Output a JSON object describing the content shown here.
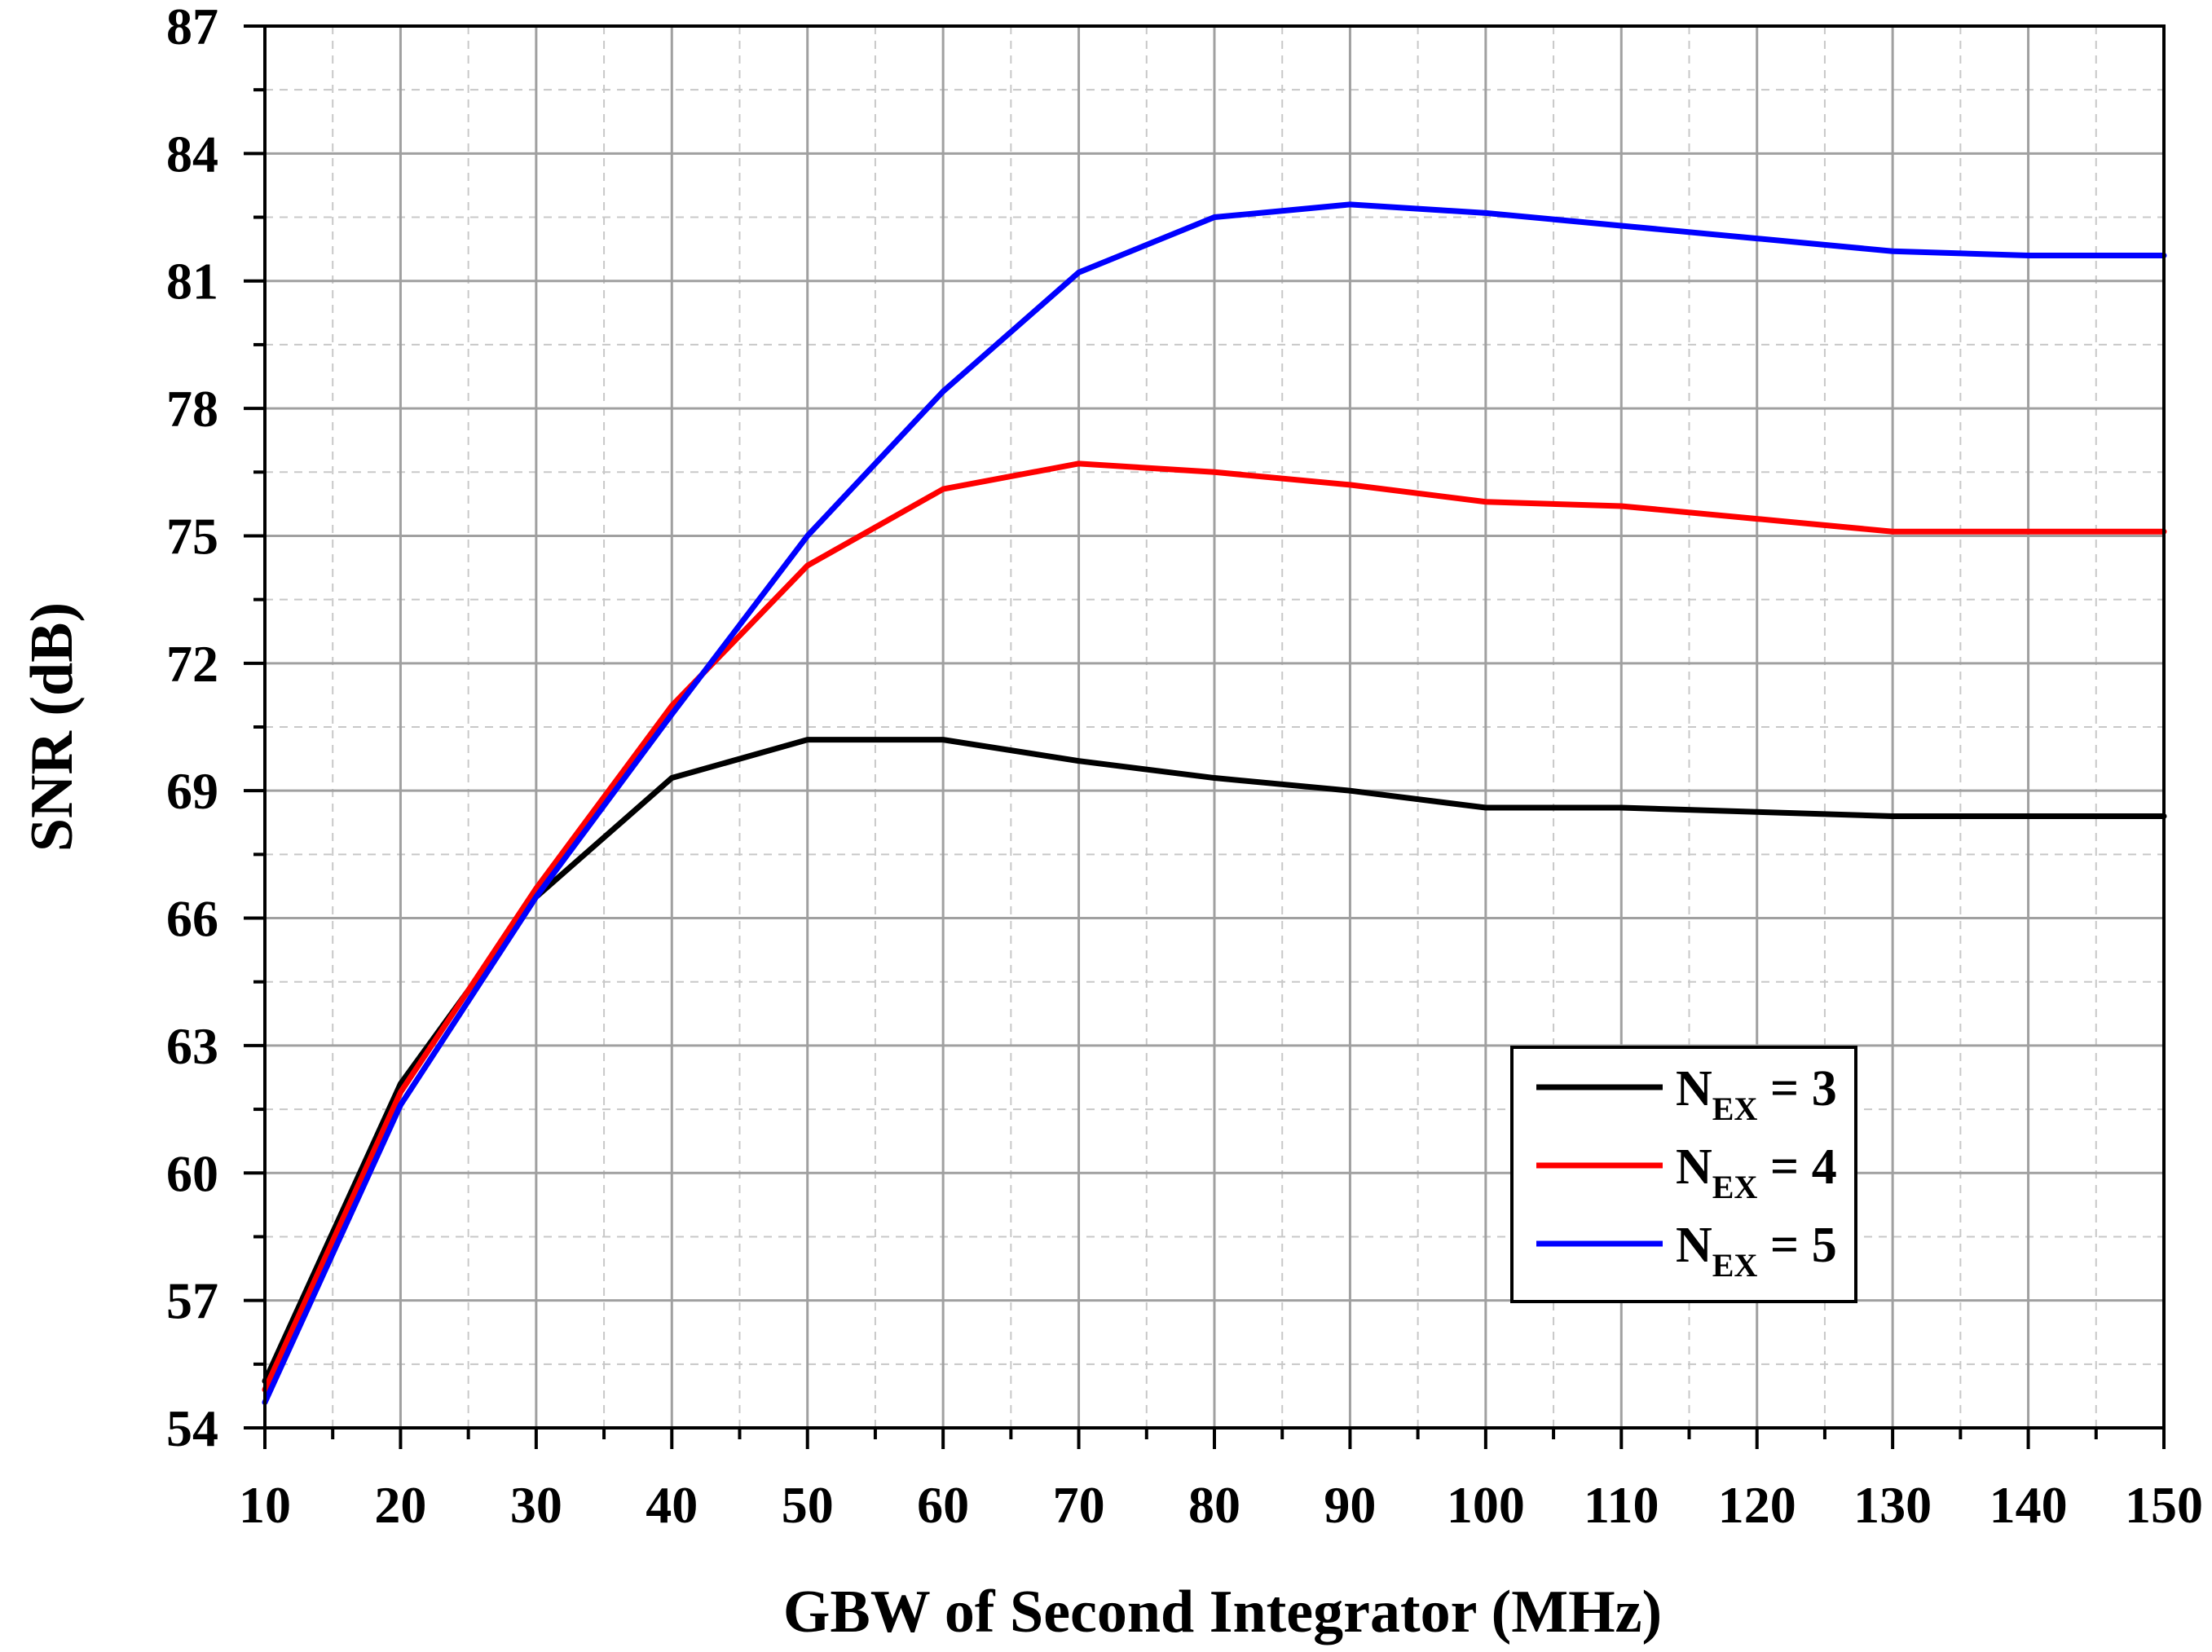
{
  "chart_data": {
    "type": "line",
    "xlabel": "GBW of Second Integrator (MHz)",
    "ylabel": "SNR (dB)",
    "xlim": [
      10,
      150
    ],
    "ylim": [
      54,
      87
    ],
    "xticks": [
      "10",
      "20",
      "30",
      "40",
      "50",
      "60",
      "70",
      "80",
      "90",
      "100",
      "110",
      "120",
      "130",
      "140",
      "150"
    ],
    "yticks": [
      "54",
      "57",
      "60",
      "63",
      "66",
      "69",
      "72",
      "75",
      "78",
      "81",
      "84",
      "87"
    ],
    "grid": true,
    "legend_position": "bottom-right",
    "x": [
      10,
      20,
      30,
      40,
      50,
      60,
      70,
      80,
      90,
      100,
      110,
      120,
      130,
      140,
      150
    ],
    "series": [
      {
        "name": "N_EX = 3",
        "label_main": "N",
        "label_sub": "EX",
        "label_rest": " = 3",
        "color": "#000000",
        "values": [
          55.1,
          62.1,
          66.5,
          69.3,
          70.2,
          70.2,
          69.7,
          69.3,
          69.0,
          68.6,
          68.6,
          68.5,
          68.4,
          68.4,
          68.4
        ]
      },
      {
        "name": "N_EX = 4",
        "label_main": "N",
        "label_sub": "EX",
        "label_rest": " = 4",
        "color": "#ff0000",
        "values": [
          54.9,
          61.9,
          66.7,
          71.0,
          74.3,
          76.1,
          76.7,
          76.5,
          76.2,
          75.8,
          75.7,
          75.4,
          75.1,
          75.1,
          75.1
        ]
      },
      {
        "name": "N_EX = 5",
        "label_main": "N",
        "label_sub": "EX",
        "label_rest": " = 5",
        "color": "#0000ff",
        "values": [
          54.6,
          61.6,
          66.5,
          70.8,
          75.0,
          78.4,
          81.2,
          82.5,
          82.8,
          82.6,
          82.3,
          82.0,
          81.7,
          81.6,
          81.6
        ]
      }
    ]
  }
}
